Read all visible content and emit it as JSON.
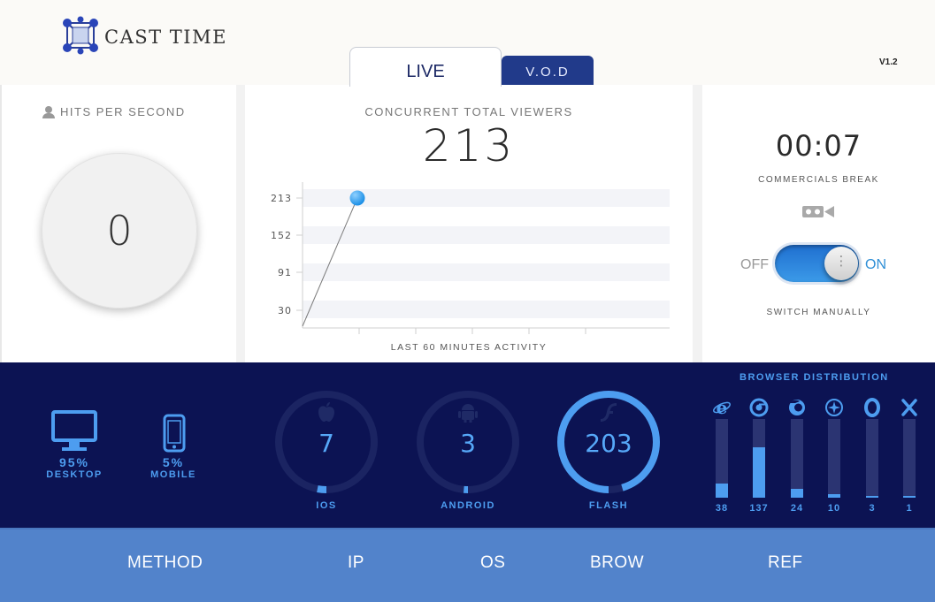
{
  "header": {
    "brand": "CAST TIME",
    "version": "V1.2",
    "tabs": [
      {
        "label": "LIVE",
        "active": true
      },
      {
        "label": "V.O.D",
        "active": false
      }
    ]
  },
  "hits": {
    "title": "HITS PER SECOND",
    "value": "0",
    "icon": "user-icon"
  },
  "viewers": {
    "title": "CONCURRENT TOTAL VIEWERS",
    "value": "213",
    "caption": "LAST 60 MINUTES ACTIVITY"
  },
  "chart_data": {
    "type": "line",
    "title": "",
    "xlabel": "LAST 60 MINUTES ACTIVITY",
    "ylabel": "",
    "y_ticks": [
      "213",
      "152",
      "91",
      "30"
    ],
    "ylim": [
      0,
      213
    ],
    "x": [
      0,
      1
    ],
    "series": [
      {
        "values": [
          0,
          213
        ]
      }
    ],
    "grid": "horizontal bands",
    "accent": "#1b8fe6"
  },
  "commercial": {
    "timer": "00:07",
    "label": "COMMERCIALS BREAK",
    "icon": "camera-icon",
    "toggle_off": "OFF",
    "toggle_on": "ON",
    "toggle_state": "on",
    "switch_label": "SWITCH MANUALLY"
  },
  "devices": [
    {
      "pct": "95%",
      "name": "DESKTOP",
      "icon": "desktop-icon"
    },
    {
      "pct": "5%",
      "name": "MOBILE",
      "icon": "mobile-icon"
    }
  ],
  "platforms": [
    {
      "value": "7",
      "label": "IOS",
      "icon": "apple-icon",
      "fraction": 0.03
    },
    {
      "value": "3",
      "label": "ANDROID",
      "icon": "android-icon",
      "fraction": 0.014
    },
    {
      "value": "203",
      "label": "FLASH",
      "icon": "flash-icon",
      "fraction": 0.953
    }
  ],
  "browsers": {
    "title": "BROWSER DISTRIBUTION",
    "items": [
      {
        "icon": "ie-icon",
        "count": "38",
        "fraction": 0.178
      },
      {
        "icon": "chrome-icon",
        "count": "137",
        "fraction": 0.643
      },
      {
        "icon": "firefox-icon",
        "count": "24",
        "fraction": 0.113
      },
      {
        "icon": "safari-icon",
        "count": "10",
        "fraction": 0.047
      },
      {
        "icon": "opera-icon",
        "count": "3",
        "fraction": 0.014
      },
      {
        "icon": "other-x-icon",
        "count": "1",
        "fraction": 0.005
      }
    ]
  },
  "nav": {
    "items": [
      "METHOD",
      "IP",
      "OS",
      "BROW",
      "REF"
    ]
  },
  "colors": {
    "band": "#0c1353",
    "accent_blue": "#4d9df0",
    "nav": "#5283cb",
    "vod_tab": "#213a8a"
  }
}
